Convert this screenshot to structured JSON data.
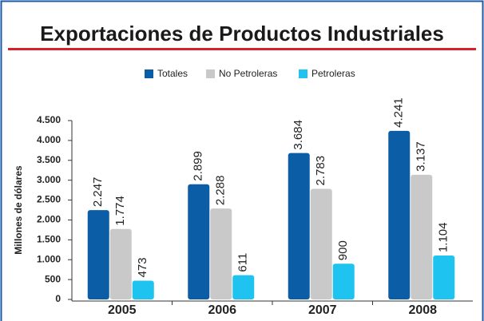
{
  "chart_data": {
    "type": "bar",
    "title": "Exportaciones de Productos Industriales",
    "ylabel": "Millones de dólares",
    "categories": [
      "2005",
      "2006",
      "2007",
      "2008"
    ],
    "series": [
      {
        "name": "Totales",
        "color": "#0b5ea6",
        "values": [
          2247,
          2899,
          3684,
          4241
        ],
        "value_labels": [
          "2.247",
          "2.899",
          "3.684",
          "4.241"
        ]
      },
      {
        "name": "No Petroleras",
        "color": "#c9c9c9",
        "values": [
          1774,
          2288,
          2783,
          3137
        ],
        "value_labels": [
          "1.774",
          "2.288",
          "2.783",
          "3.137"
        ]
      },
      {
        "name": "Petroleras",
        "color": "#1fc3ef",
        "values": [
          473,
          611,
          900,
          1104
        ],
        "value_labels": [
          "473",
          "611",
          "900",
          "1.104"
        ]
      }
    ],
    "ylim": [
      0,
      4500
    ],
    "yticks": [
      0,
      500,
      {
        "value": 1000,
        "label": "1.000"
      },
      {
        "value": 1500,
        "label": "1.500"
      },
      {
        "value": 2000,
        "label": "2.000"
      },
      {
        "value": 2500,
        "label": "2.500"
      },
      {
        "value": 3000,
        "label": "3.000"
      },
      {
        "value": 3500,
        "label": "3.500"
      },
      {
        "value": 4000,
        "label": "4.000"
      },
      {
        "value": 4500,
        "label": "4.500"
      }
    ],
    "legend": "top"
  }
}
